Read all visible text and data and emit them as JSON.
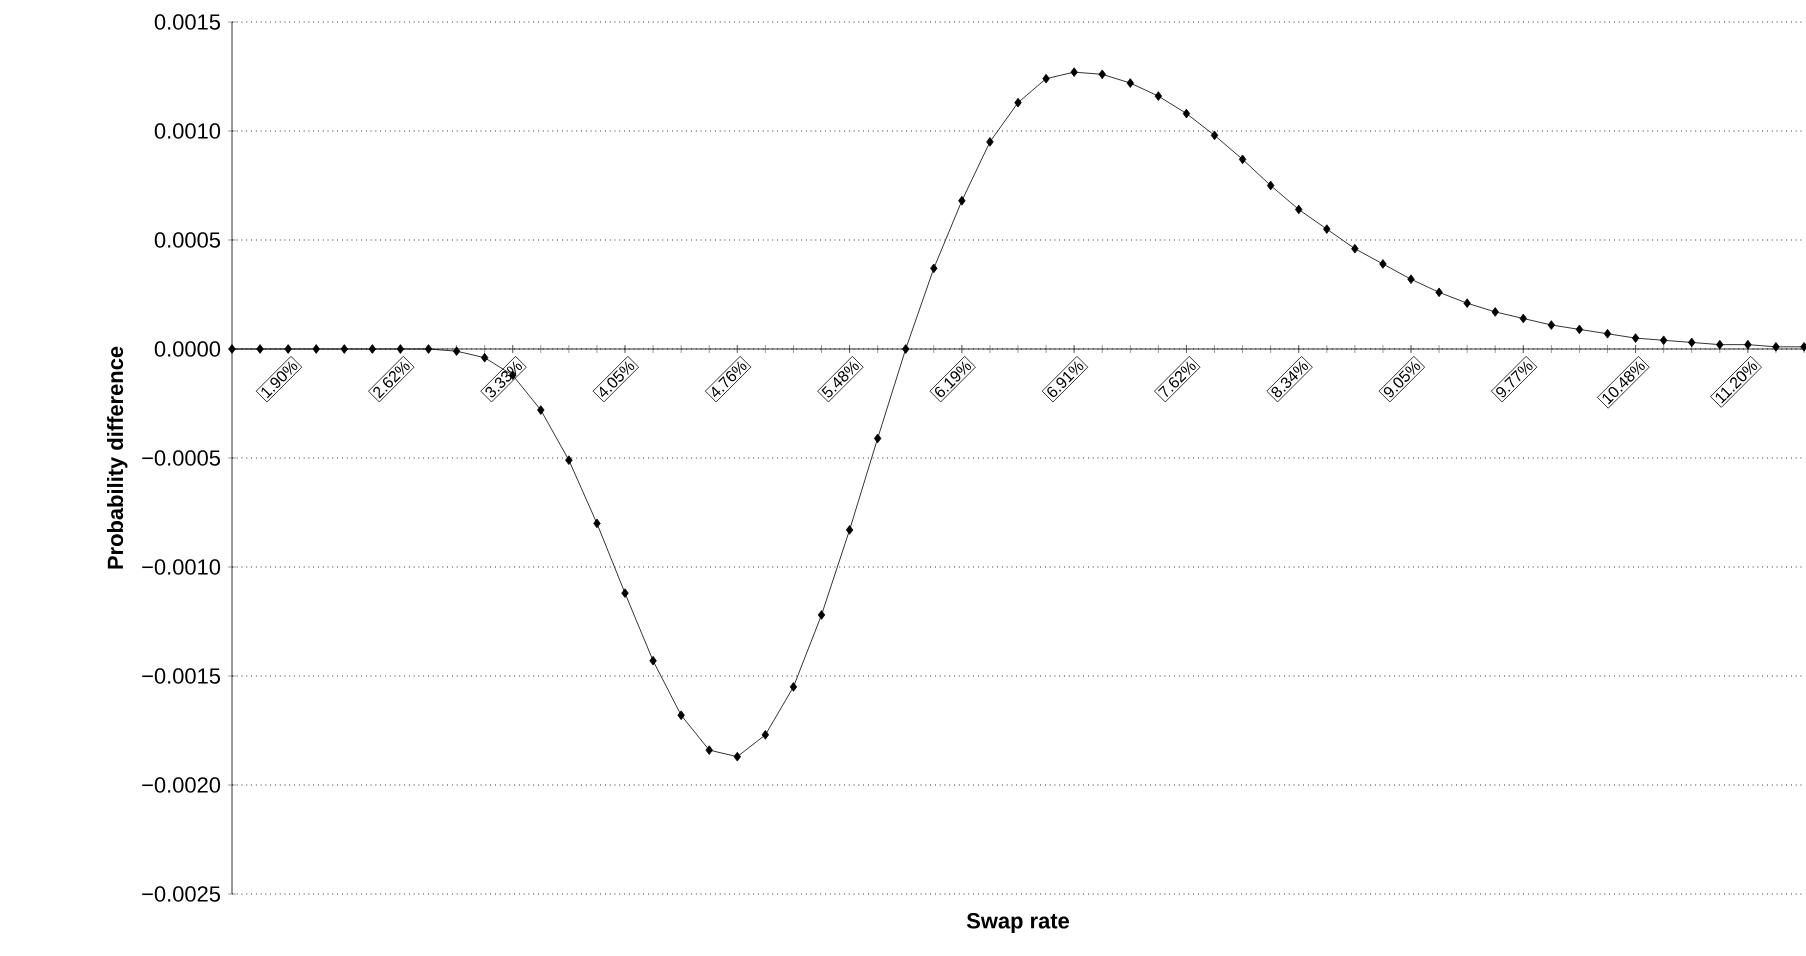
{
  "chart_data": {
    "type": "line",
    "xlabel": "Swap rate",
    "ylabel": "Probability difference",
    "categories": [
      null,
      null,
      "1.90%",
      null,
      null,
      null,
      "2.62%",
      null,
      null,
      null,
      "3.33%",
      null,
      null,
      null,
      "4.05%",
      null,
      null,
      null,
      "4.76%",
      null,
      null,
      null,
      "5.48%",
      null,
      null,
      null,
      "6.19%",
      null,
      null,
      null,
      "6.91%",
      null,
      null,
      null,
      "7.62%",
      null,
      null,
      null,
      "8.34%",
      null,
      null,
      null,
      "9.05%",
      null,
      null,
      null,
      "9.77%",
      null,
      null,
      null,
      "10.48%",
      null,
      null,
      null,
      "11.20%",
      null,
      null
    ],
    "series": [
      {
        "color": "#000000",
        "values": [
          0,
          0,
          0,
          0,
          0,
          0,
          0,
          0,
          -1e-05,
          -4e-05,
          -0.00012,
          -0.00028,
          -0.00051,
          -0.0008,
          -0.00112,
          -0.00143,
          -0.00168,
          -0.00184,
          -0.00187,
          -0.00177,
          -0.00155,
          -0.00122,
          -0.00083,
          -0.00041,
          0,
          0.00037,
          0.00068,
          0.00095,
          0.00113,
          0.00124,
          0.00127,
          0.00126,
          0.00122,
          0.00116,
          0.00108,
          0.00098,
          0.00087,
          0.00075,
          0.00064,
          0.00055,
          0.00046,
          0.00039,
          0.00032,
          0.00026,
          0.00021,
          0.00017,
          0.00014,
          0.00011,
          9e-05,
          7e-05,
          5e-05,
          4e-05,
          3e-05,
          2e-05,
          2e-05,
          1e-05,
          1e-05
        ]
      }
    ],
    "ylim": [
      -0.0025,
      0.0015
    ],
    "yticks": [
      {
        "value": -0.0025,
        "label": "−0.0025"
      },
      {
        "value": -0.002,
        "label": "−0.0020"
      },
      {
        "value": -0.0015,
        "label": "−0.0015"
      },
      {
        "value": -0.001,
        "label": "−0.0010"
      },
      {
        "value": -0.0005,
        "label": "−0.0005"
      },
      {
        "value": 0,
        "label": "0.0000"
      },
      {
        "value": 0.0005,
        "label": "0.0005"
      },
      {
        "value": 0.001,
        "label": "0.0010"
      },
      {
        "value": 0.0015,
        "label": "0.0015"
      }
    ],
    "grid": "y",
    "marker": "diamond",
    "line_style": "solid"
  }
}
